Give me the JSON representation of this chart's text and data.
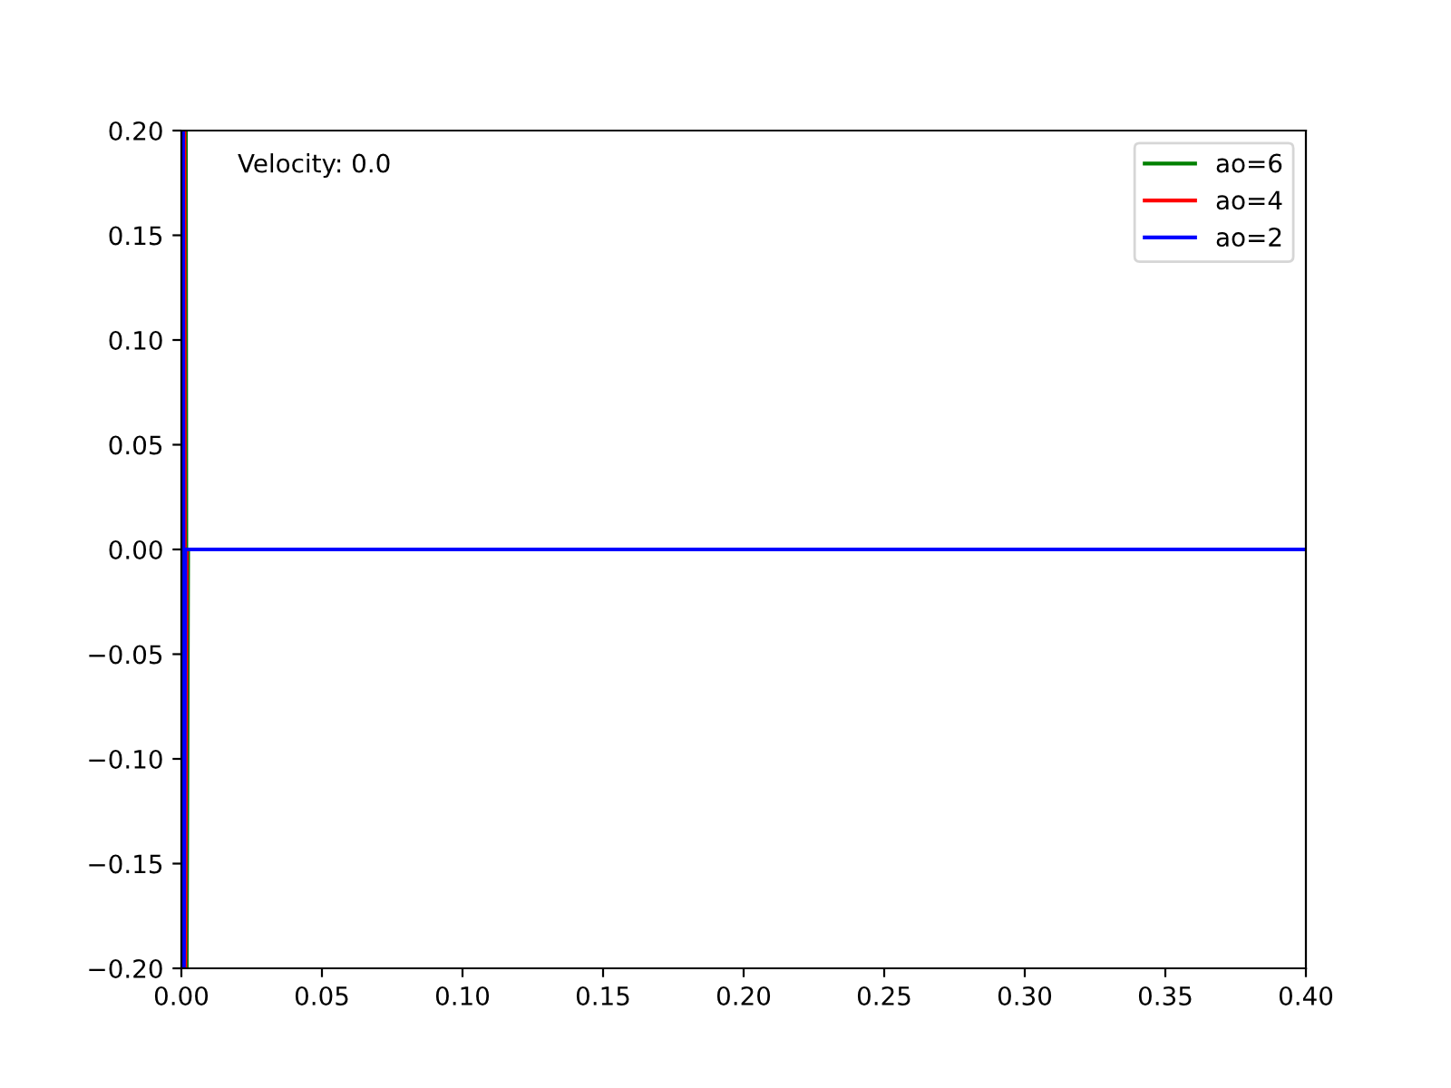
{
  "chart_data": {
    "type": "line",
    "annotations": [
      "Velocity: 0.0"
    ],
    "series": [
      {
        "name": "ao=6",
        "color": "#008000",
        "x": [
          0.0016,
          0.0019,
          0.0024
        ],
        "values": [
          0.2,
          -0.2,
          0.0
        ]
      },
      {
        "name": "ao=4",
        "color": "#ff0000",
        "x": [
          0.0011,
          0.0014,
          0.0019
        ],
        "values": [
          0.2,
          -0.2,
          0.0
        ]
      },
      {
        "name": "ao=2",
        "color": "#0000ff",
        "x": [
          0.0006,
          0.0009,
          0.0014,
          0.025,
          0.05,
          0.075,
          0.1,
          0.125,
          0.15,
          0.175,
          0.2,
          0.225,
          0.25,
          0.275,
          0.3,
          0.325,
          0.35,
          0.375,
          0.4
        ],
        "values": [
          0.2,
          -0.2,
          0.0,
          0.0,
          0.0,
          0.0,
          0.0,
          0.0,
          0.0,
          0.0,
          0.0,
          0.0,
          0.0,
          0.0,
          0.0,
          0.0,
          0.0,
          0.0,
          0.0
        ]
      }
    ],
    "xlim": [
      0.0,
      0.4
    ],
    "xticks": [
      {
        "value": 0.0,
        "label": "0.00"
      },
      {
        "value": 0.05,
        "label": "0.05"
      },
      {
        "value": 0.1,
        "label": "0.10"
      },
      {
        "value": 0.15,
        "label": "0.15"
      },
      {
        "value": 0.2,
        "label": "0.20"
      },
      {
        "value": 0.25,
        "label": "0.25"
      },
      {
        "value": 0.3,
        "label": "0.30"
      },
      {
        "value": 0.35,
        "label": "0.35"
      },
      {
        "value": 0.4,
        "label": "0.40"
      }
    ],
    "ylim": [
      -0.2,
      0.2
    ],
    "yticks": [
      {
        "value": -0.2,
        "label": "−0.20"
      },
      {
        "value": -0.15,
        "label": "−0.15"
      },
      {
        "value": -0.1,
        "label": "−0.10"
      },
      {
        "value": -0.05,
        "label": "−0.05"
      },
      {
        "value": 0.0,
        "label": "0.00"
      },
      {
        "value": 0.05,
        "label": "0.05"
      },
      {
        "value": 0.1,
        "label": "0.10"
      },
      {
        "value": 0.15,
        "label": "0.15"
      },
      {
        "value": 0.2,
        "label": "0.20"
      }
    ],
    "grid": false,
    "legend": "top right",
    "marker": "none",
    "line_style": "solid"
  }
}
